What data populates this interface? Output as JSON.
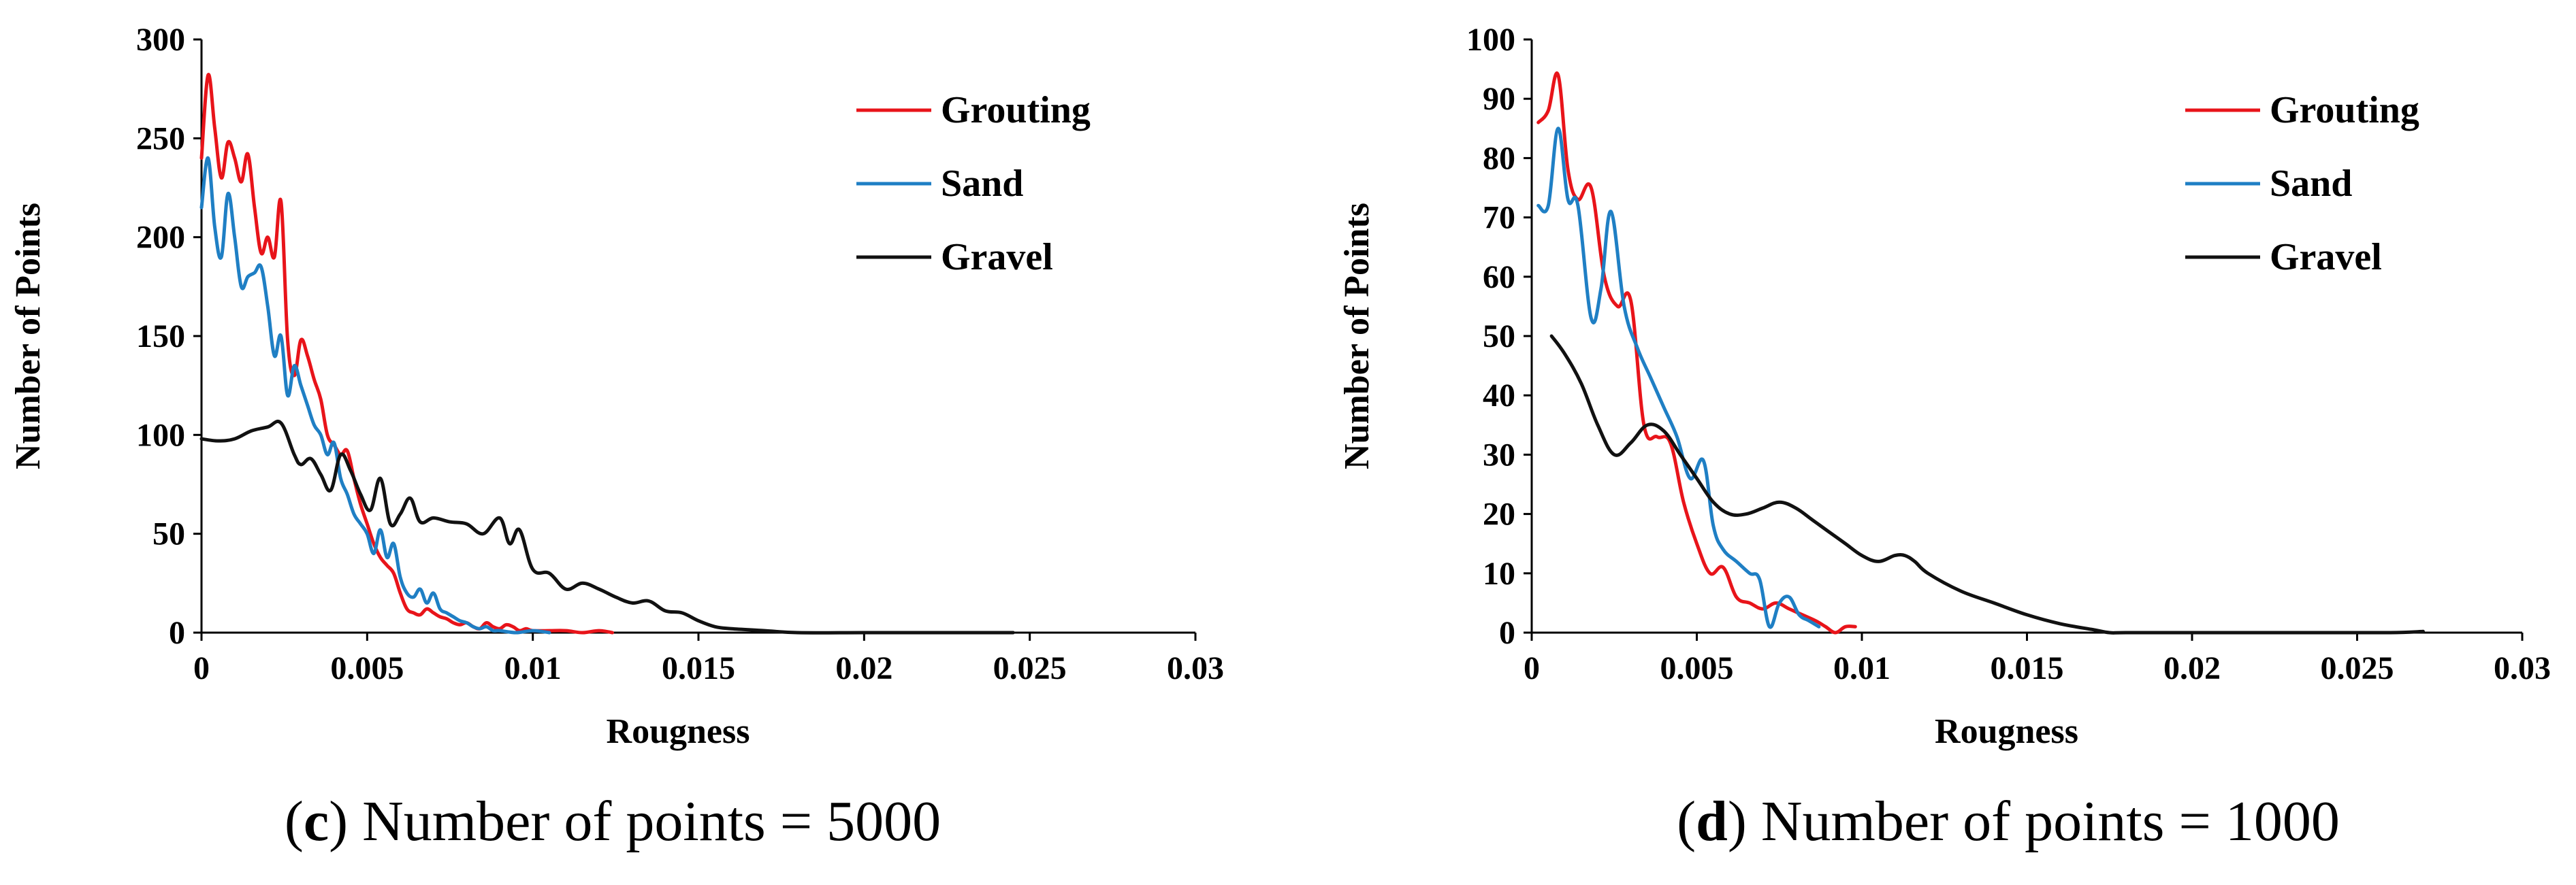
{
  "colors": {
    "grouting": "#e8141a",
    "sand": "#1f7fc4",
    "gravel": "#111111",
    "axis": "#000000"
  },
  "chart_data": [
    {
      "type": "line",
      "caption_letter": "c",
      "caption_text": "Number of points = 5000",
      "caption_open": "(",
      "caption_close": ")",
      "xlabel": "Rougness",
      "ylabel": "Number of Points",
      "xlim": [
        0,
        0.03
      ],
      "ylim": [
        0,
        300
      ],
      "xticks": [
        0,
        0.005,
        0.01,
        0.015,
        0.02,
        0.025,
        0.03
      ],
      "xtick_labels": [
        "0",
        "0.005",
        "0.01",
        "0.015",
        "0.02",
        "0.025",
        "0.03"
      ],
      "yticks": [
        0,
        50,
        100,
        150,
        200,
        250,
        300
      ],
      "ytick_labels": [
        "0",
        "50",
        "100",
        "150",
        "200",
        "250",
        "300"
      ],
      "legend_position": "top-right",
      "series": [
        {
          "name": "Grouting",
          "color_key": "grouting",
          "x": [
            0,
            0.0002,
            0.0004,
            0.0006,
            0.0008,
            0.001,
            0.0012,
            0.0014,
            0.0016,
            0.0018,
            0.002,
            0.0022,
            0.0024,
            0.0026,
            0.0028,
            0.003,
            0.0032,
            0.0034,
            0.0036,
            0.0038,
            0.004,
            0.0042,
            0.0044,
            0.0046,
            0.0048,
            0.005,
            0.0052,
            0.0054,
            0.0056,
            0.0058,
            0.006,
            0.0062,
            0.0064,
            0.0066,
            0.0068,
            0.007,
            0.0072,
            0.0074,
            0.0076,
            0.0078,
            0.008,
            0.0082,
            0.0084,
            0.0086,
            0.0088,
            0.009,
            0.0092,
            0.0094,
            0.0096,
            0.0098,
            0.01,
            0.0105,
            0.011,
            0.0115,
            0.012,
            0.0124
          ],
          "y": [
            240,
            282,
            255,
            230,
            248,
            240,
            228,
            242,
            215,
            192,
            200,
            190,
            218,
            148,
            130,
            148,
            140,
            128,
            118,
            100,
            95,
            90,
            92,
            78,
            65,
            55,
            45,
            38,
            34,
            30,
            20,
            12,
            10,
            9,
            12,
            10,
            8,
            7,
            5,
            4,
            5,
            3,
            2,
            5,
            3,
            2,
            4,
            3,
            1,
            2,
            1,
            1,
            1,
            0,
            1,
            0
          ]
        },
        {
          "name": "Sand",
          "color_key": "sand",
          "x": [
            0,
            0.0002,
            0.0004,
            0.0006,
            0.0008,
            0.001,
            0.0012,
            0.0014,
            0.0016,
            0.0018,
            0.002,
            0.0022,
            0.0024,
            0.0026,
            0.0028,
            0.003,
            0.0032,
            0.0034,
            0.0036,
            0.0038,
            0.004,
            0.0042,
            0.0044,
            0.0046,
            0.0048,
            0.005,
            0.0052,
            0.0054,
            0.0056,
            0.0058,
            0.006,
            0.0062,
            0.0064,
            0.0066,
            0.0068,
            0.007,
            0.0072,
            0.0074,
            0.0076,
            0.0078,
            0.008,
            0.0082,
            0.0084,
            0.0086,
            0.0088,
            0.009,
            0.0095,
            0.01,
            0.0105
          ],
          "y": [
            215,
            240,
            205,
            190,
            222,
            200,
            175,
            180,
            182,
            185,
            165,
            140,
            150,
            120,
            135,
            125,
            115,
            105,
            100,
            90,
            96,
            78,
            70,
            60,
            55,
            50,
            40,
            52,
            38,
            45,
            28,
            20,
            18,
            22,
            15,
            20,
            12,
            10,
            8,
            6,
            5,
            3,
            2,
            3,
            1,
            1,
            0,
            1,
            0
          ]
        },
        {
          "name": "Gravel",
          "color_key": "gravel",
          "x": [
            0,
            0.0005,
            0.001,
            0.0015,
            0.002,
            0.0024,
            0.0028,
            0.003,
            0.0033,
            0.0036,
            0.0039,
            0.0042,
            0.0045,
            0.0048,
            0.0051,
            0.0054,
            0.0057,
            0.006,
            0.0063,
            0.0066,
            0.007,
            0.0075,
            0.008,
            0.0085,
            0.009,
            0.0093,
            0.0096,
            0.01,
            0.0105,
            0.011,
            0.0115,
            0.012,
            0.0125,
            0.013,
            0.0135,
            0.014,
            0.0145,
            0.015,
            0.0155,
            0.016,
            0.017,
            0.018,
            0.02,
            0.022,
            0.024,
            0.0245
          ],
          "y": [
            98,
            97,
            98,
            102,
            104,
            106,
            90,
            85,
            88,
            80,
            72,
            90,
            82,
            70,
            62,
            78,
            55,
            60,
            68,
            56,
            58,
            56,
            55,
            50,
            58,
            45,
            52,
            32,
            30,
            22,
            25,
            22,
            18,
            15,
            16,
            11,
            10,
            6,
            3,
            2,
            1,
            0,
            0,
            0,
            0,
            0
          ]
        }
      ]
    },
    {
      "type": "line",
      "caption_letter": "d",
      "caption_text": "Number of points = 1000",
      "caption_open": "(",
      "caption_close": ")",
      "xlabel": "Rougness",
      "ylabel": "Number of Points",
      "xlim": [
        0,
        0.03
      ],
      "ylim": [
        0,
        100
      ],
      "xticks": [
        0,
        0.005,
        0.01,
        0.015,
        0.02,
        0.025,
        0.03
      ],
      "xtick_labels": [
        "0",
        "0.005",
        "0.01",
        "0.015",
        "0.02",
        "0.025",
        "0.03"
      ],
      "yticks": [
        0,
        10,
        20,
        30,
        40,
        50,
        60,
        70,
        80,
        90,
        100
      ],
      "ytick_labels": [
        "0",
        "10",
        "20",
        "30",
        "40",
        "50",
        "60",
        "70",
        "80",
        "90",
        "100"
      ],
      "legend_position": "top-right",
      "series": [
        {
          "name": "Grouting",
          "color_key": "grouting",
          "x": [
            0.0002,
            0.0005,
            0.0008,
            0.0011,
            0.0014,
            0.0018,
            0.0022,
            0.0026,
            0.003,
            0.0034,
            0.0038,
            0.0042,
            0.0046,
            0.005,
            0.0054,
            0.0058,
            0.0062,
            0.0066,
            0.007,
            0.0074,
            0.0078,
            0.0082,
            0.0086,
            0.0089,
            0.0092,
            0.0095,
            0.0098
          ],
          "y": [
            86,
            88,
            94,
            78,
            73,
            75,
            60,
            55,
            56,
            35,
            33,
            32,
            22,
            15,
            10,
            11,
            6,
            5,
            4,
            5,
            4,
            3,
            2,
            1,
            0,
            1,
            1
          ]
        },
        {
          "name": "Sand",
          "color_key": "sand",
          "x": [
            0.0002,
            0.0005,
            0.0008,
            0.0011,
            0.0014,
            0.0018,
            0.0021,
            0.0024,
            0.0028,
            0.0032,
            0.0036,
            0.004,
            0.0044,
            0.0048,
            0.0052,
            0.0055,
            0.0058,
            0.0062,
            0.0066,
            0.0069,
            0.0072,
            0.0075,
            0.0078,
            0.0081,
            0.0084,
            0.0087
          ],
          "y": [
            72,
            72,
            85,
            73,
            72,
            53,
            58,
            71,
            55,
            48,
            43,
            38,
            33,
            26,
            29,
            18,
            14,
            12,
            10,
            9,
            1,
            5,
            6,
            3,
            2,
            1
          ]
        },
        {
          "name": "Gravel",
          "color_key": "gravel",
          "x": [
            0.0006,
            0.001,
            0.0015,
            0.002,
            0.0025,
            0.003,
            0.0035,
            0.004,
            0.0045,
            0.005,
            0.0055,
            0.006,
            0.0065,
            0.007,
            0.0075,
            0.008,
            0.0085,
            0.009,
            0.0095,
            0.01,
            0.0105,
            0.011,
            0.0113,
            0.0116,
            0.012,
            0.013,
            0.014,
            0.015,
            0.016,
            0.017,
            0.0175,
            0.018,
            0.02,
            0.022,
            0.024,
            0.026,
            0.027
          ],
          "y": [
            50,
            47,
            42,
            35,
            30,
            32,
            35,
            34,
            30,
            26,
            22,
            20,
            20,
            21,
            22,
            21,
            19,
            17,
            15,
            13,
            12,
            13,
            13,
            12,
            10,
            7,
            5,
            3,
            1.5,
            0.5,
            0,
            0,
            0,
            0,
            0,
            0,
            0.2
          ]
        }
      ]
    }
  ]
}
